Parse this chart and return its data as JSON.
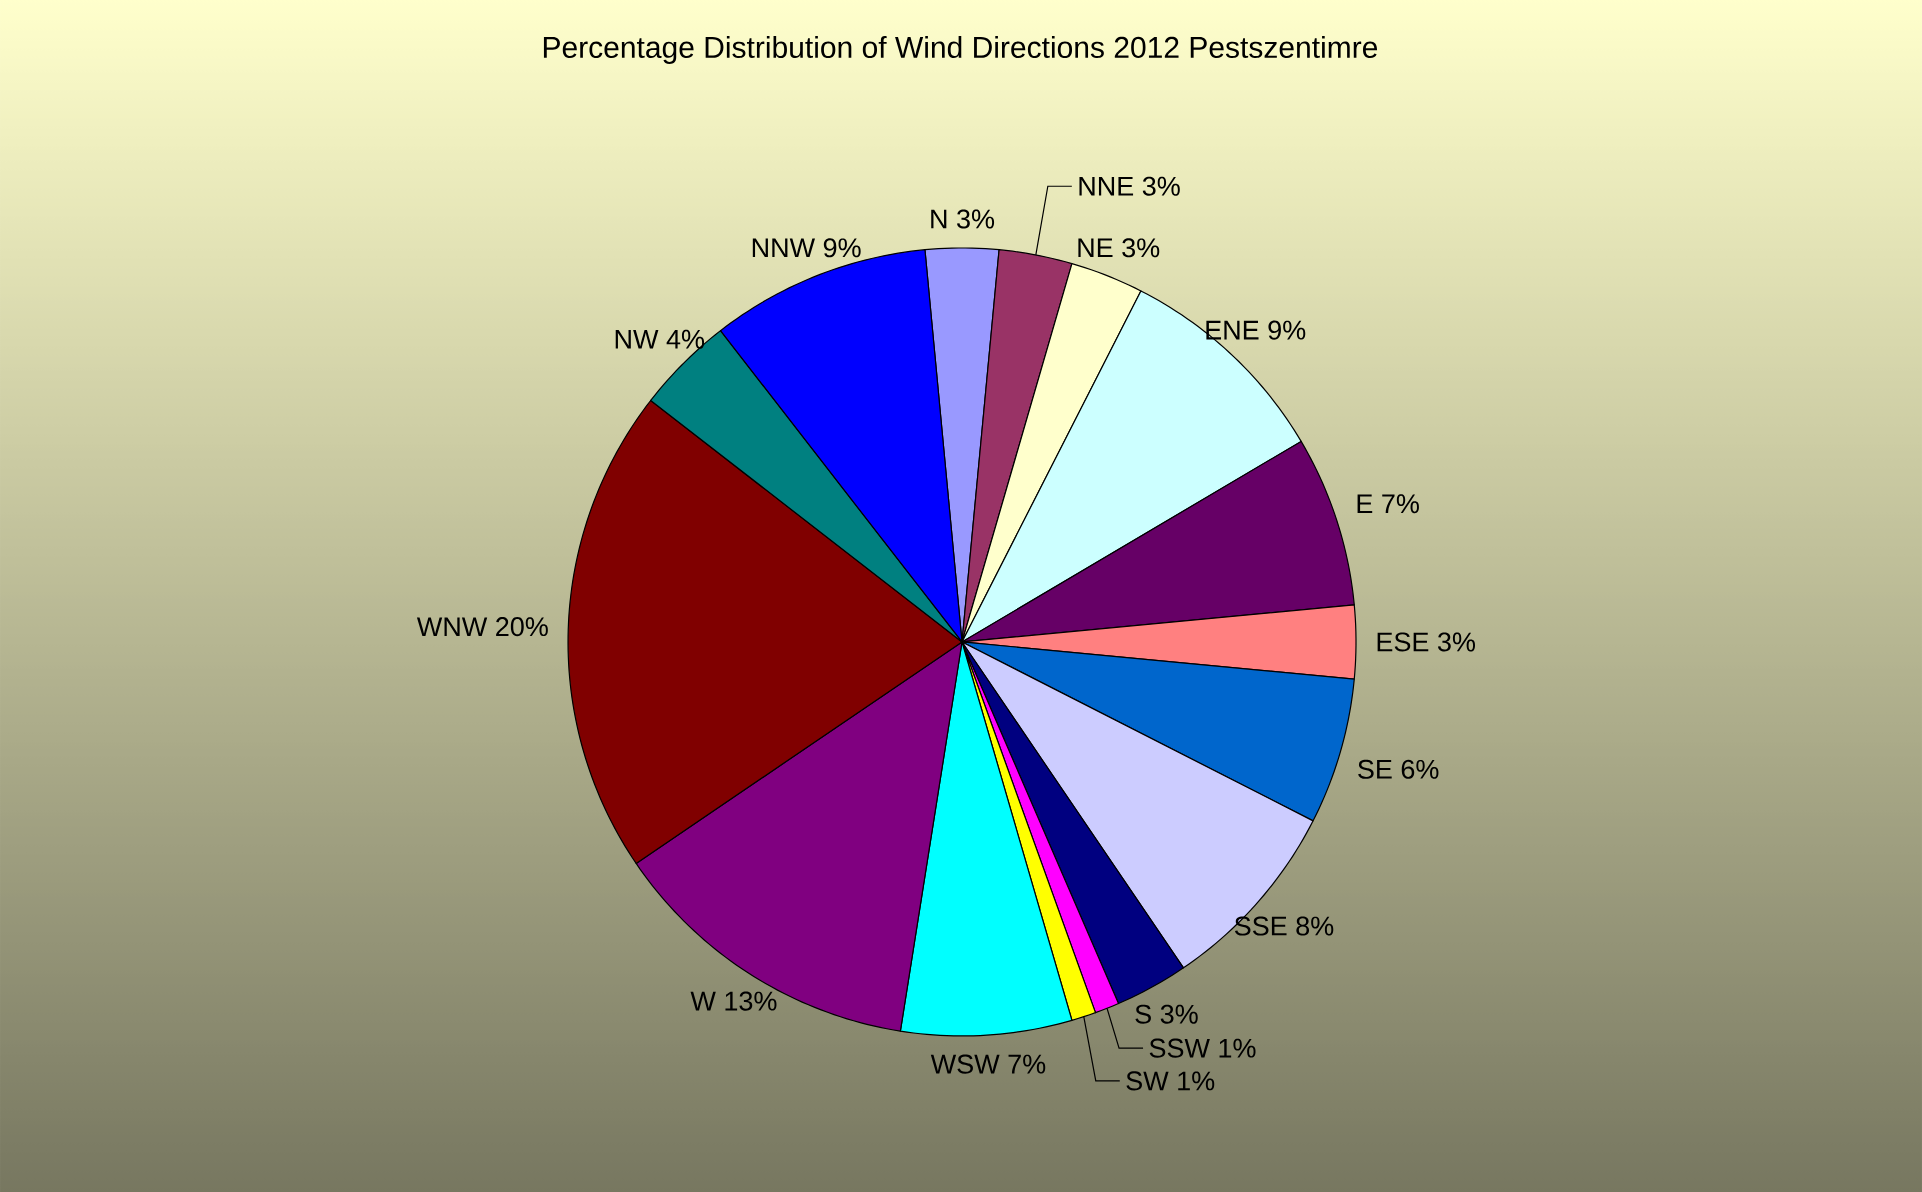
{
  "chart_data": {
    "type": "pie",
    "title": "Percentage Distribution of Wind Directions 2012 Pestszentimre",
    "categories": [
      "N",
      "NNE",
      "NE",
      "ENE",
      "E",
      "ESE",
      "SE",
      "SSE",
      "S",
      "SSW",
      "SW",
      "WSW",
      "W",
      "WNW",
      "NW",
      "NNW"
    ],
    "values": [
      3,
      3,
      3,
      9,
      7,
      3,
      6,
      8,
      3,
      1,
      1,
      7,
      13,
      20,
      4,
      9
    ],
    "value_labels": [
      "3%",
      "3%",
      "3%",
      "9%",
      "7%",
      "3%",
      "6%",
      "8%",
      "3%",
      "1%",
      "1%",
      "7%",
      "13%",
      "20%",
      "4%",
      "9%"
    ],
    "colors": [
      "#9999ff",
      "#993366",
      "#ffffcc",
      "#ccffff",
      "#660066",
      "#ff8080",
      "#0066cc",
      "#ccccff",
      "#000080",
      "#ff00ff",
      "#ffff00",
      "#00ffff",
      "#800080",
      "#800000",
      "#008080",
      "#0000ff"
    ]
  }
}
